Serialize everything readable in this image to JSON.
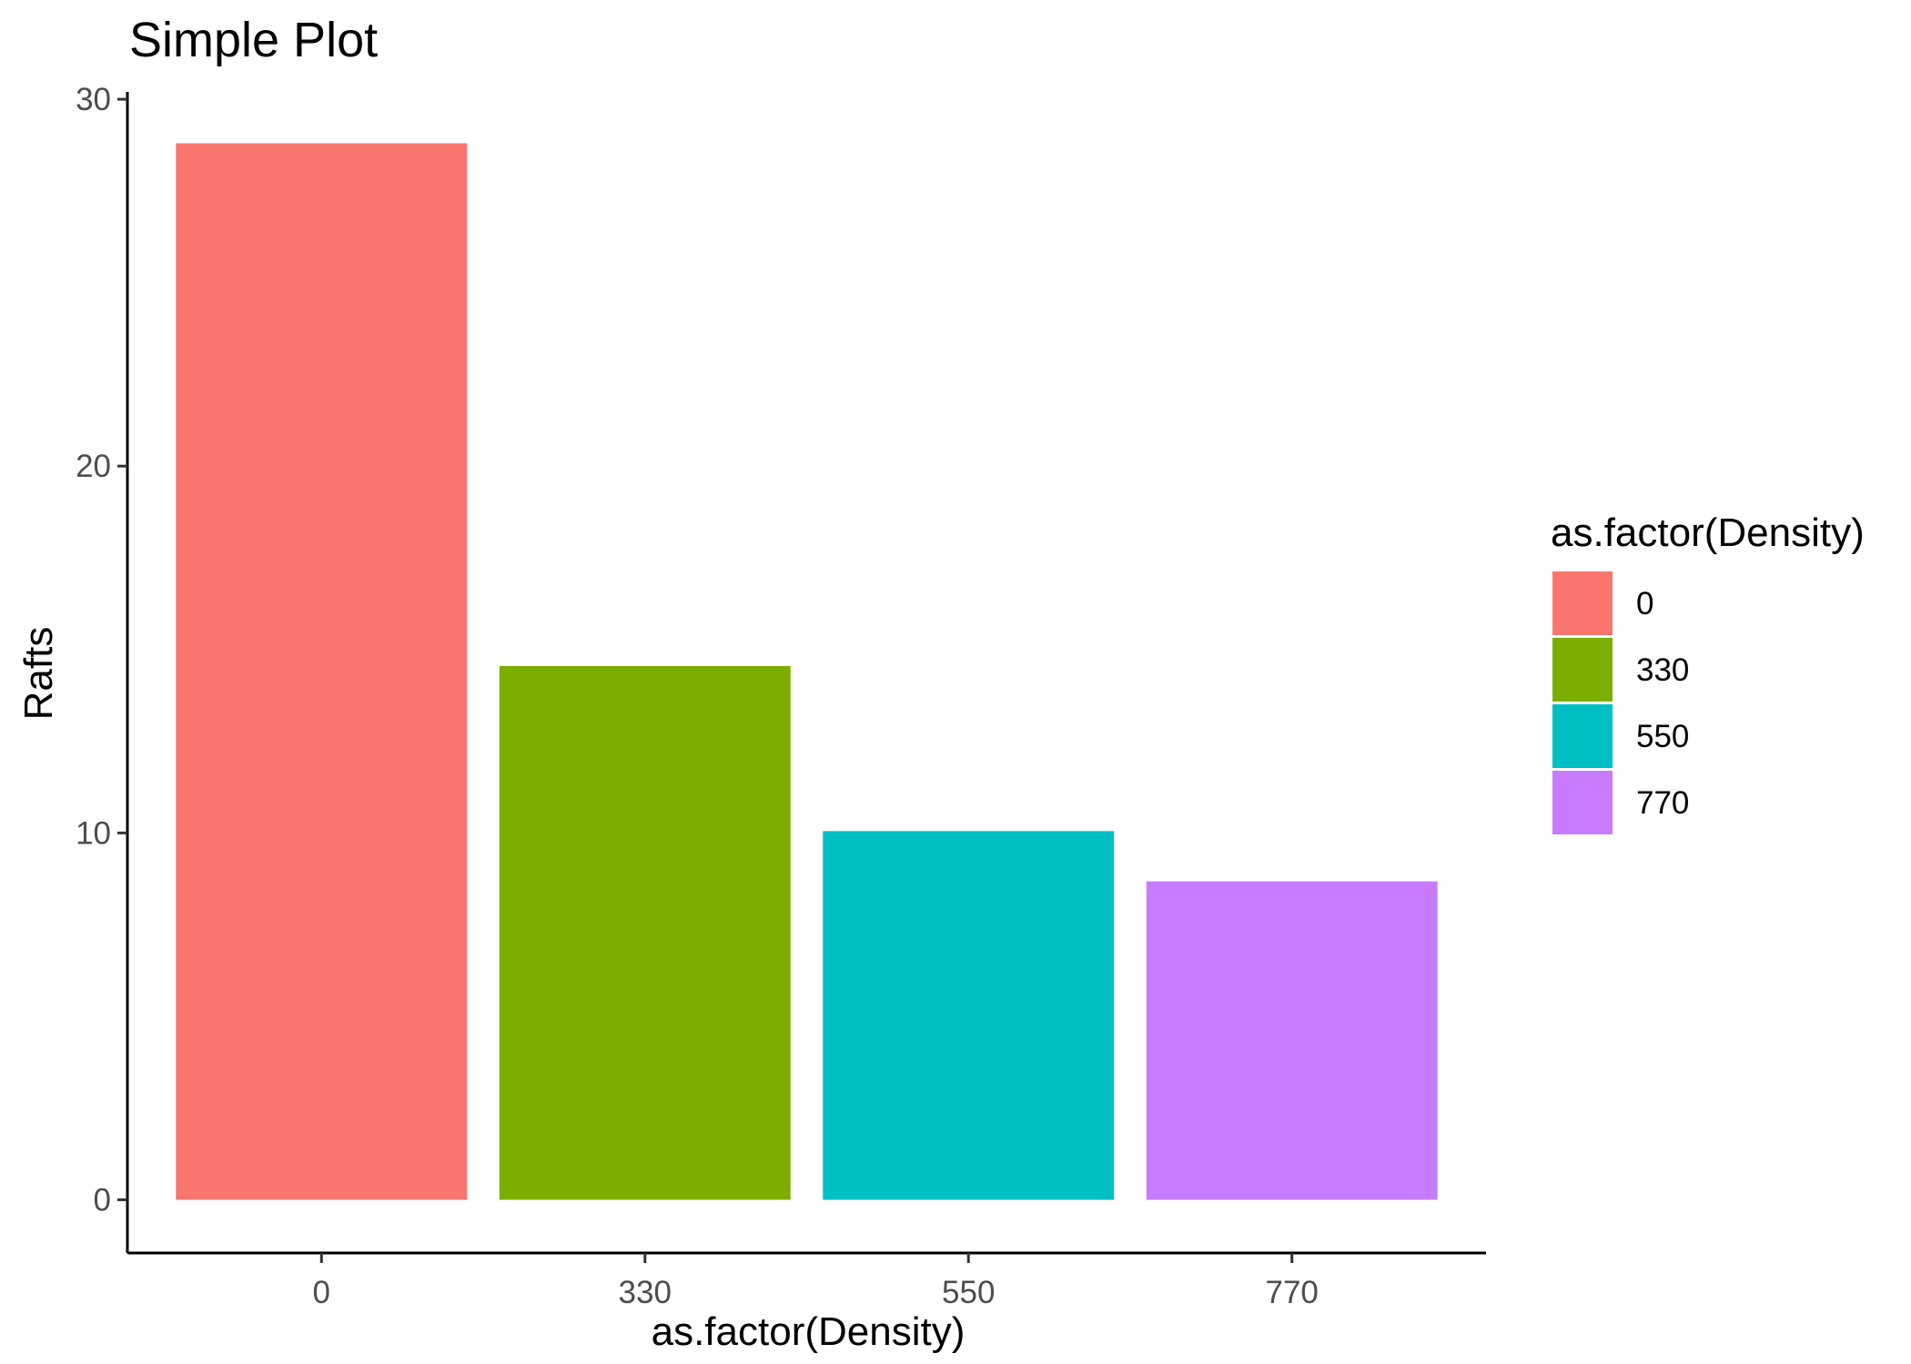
{
  "chart_data": {
    "type": "bar",
    "title": "Simple Plot",
    "xlabel": "as.factor(Density)",
    "ylabel": "Rafts",
    "categories": [
      "0",
      "330",
      "550",
      "770"
    ],
    "values": [
      28.8,
      14.55,
      10.05,
      8.68
    ],
    "colors": [
      "#F8766D",
      "#7CAE00",
      "#00BFC4",
      "#C77CFF"
    ],
    "ylim": [
      -1.45,
      30.2
    ],
    "yticks": [
      0,
      10,
      20,
      30
    ],
    "ytick_labels": [
      "0",
      "10",
      "20",
      "30"
    ],
    "grid": false,
    "legend": {
      "title": "as.factor(Density)",
      "position": "right",
      "entries": [
        "0",
        "330",
        "550",
        "770"
      ]
    }
  }
}
